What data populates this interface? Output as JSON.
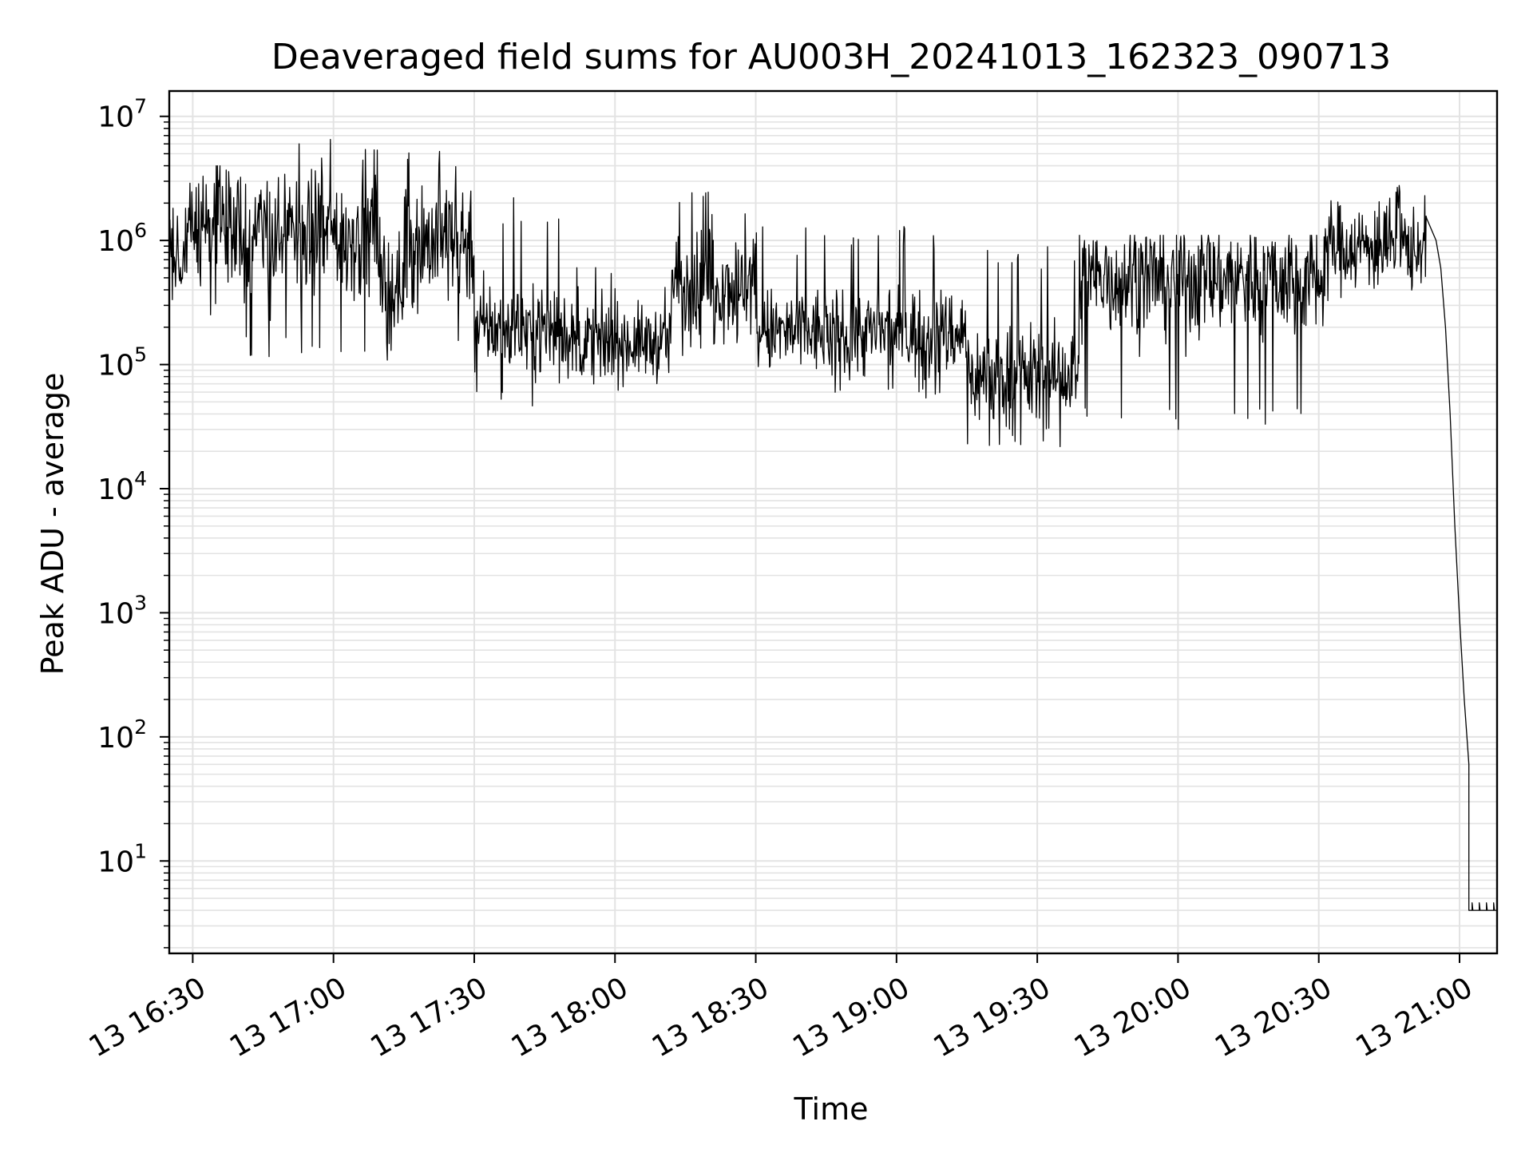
{
  "chart_data": {
    "type": "line",
    "title": "Deaveraged field sums for AU003H_20241013_162323_090713",
    "xlabel": "Time",
    "ylabel": "Peak ADU - average",
    "x_axis": {
      "kind": "datetime",
      "range": [
        "2024-10-13 16:25",
        "2024-10-13 21:08"
      ],
      "ticks": [
        {
          "t": "2024-10-13 16:30",
          "label": "13 16:30"
        },
        {
          "t": "2024-10-13 17:00",
          "label": "13 17:00"
        },
        {
          "t": "2024-10-13 17:30",
          "label": "13 17:30"
        },
        {
          "t": "2024-10-13 18:00",
          "label": "13 18:00"
        },
        {
          "t": "2024-10-13 18:30",
          "label": "13 18:30"
        },
        {
          "t": "2024-10-13 19:00",
          "label": "13 19:00"
        },
        {
          "t": "2024-10-13 19:30",
          "label": "13 19:30"
        },
        {
          "t": "2024-10-13 20:00",
          "label": "13 20:00"
        },
        {
          "t": "2024-10-13 20:30",
          "label": "13 20:30"
        },
        {
          "t": "2024-10-13 21:00",
          "label": "13 21:00"
        }
      ]
    },
    "y_axis": {
      "scale": "log",
      "range": [
        1.8,
        16000000
      ],
      "ticks": [
        {
          "value": 10,
          "base": "10",
          "exp": "1"
        },
        {
          "value": 100,
          "base": "10",
          "exp": "2"
        },
        {
          "value": 1000,
          "base": "10",
          "exp": "3"
        },
        {
          "value": 10000,
          "base": "10",
          "exp": "4"
        },
        {
          "value": 100000,
          "base": "10",
          "exp": "5"
        },
        {
          "value": 1000000,
          "base": "10",
          "exp": "6"
        },
        {
          "value": 10000000,
          "base": "10",
          "exp": "7"
        }
      ]
    },
    "grid": "major and minor, both axes",
    "line_color": "#000000",
    "series": [
      {
        "noise_envelope": [
          {
            "start": "2024-10-13 16:25",
            "end": "2024-10-13 16:31",
            "median": 900000,
            "spread_decades": 0.35,
            "max": 4200000,
            "min": 280000
          },
          {
            "start": "2024-10-13 16:31",
            "end": "2024-10-13 16:42",
            "median": 1200000,
            "spread_decades": 0.45,
            "max": 4000000,
            "min": 130000
          },
          {
            "start": "2024-10-13 16:42",
            "end": "2024-10-13 17:10",
            "median": 1100000,
            "spread_decades": 0.45,
            "max": 7800000,
            "min": 100000
          },
          {
            "start": "2024-10-13 17:10",
            "end": "2024-10-13 17:15",
            "median": 400000,
            "spread_decades": 0.35,
            "max": 1200000,
            "min": 90000
          },
          {
            "start": "2024-10-13 17:15",
            "end": "2024-10-13 17:30",
            "median": 1000000,
            "spread_decades": 0.45,
            "max": 6800000,
            "min": 120000
          },
          {
            "start": "2024-10-13 17:30",
            "end": "2024-10-13 17:50",
            "median": 200000,
            "spread_decades": 0.3,
            "max": 2400000,
            "min": 40000
          },
          {
            "start": "2024-10-13 17:50",
            "end": "2024-10-13 18:12",
            "median": 150000,
            "spread_decades": 0.25,
            "max": 700000,
            "min": 60000
          },
          {
            "start": "2024-10-13 18:12",
            "end": "2024-10-13 18:30",
            "median": 450000,
            "spread_decades": 0.35,
            "max": 2600000,
            "min": 110000
          },
          {
            "start": "2024-10-13 18:30",
            "end": "2024-10-13 19:15",
            "median": 180000,
            "spread_decades": 0.3,
            "max": 1300000,
            "min": 50000
          },
          {
            "start": "2024-10-13 19:15",
            "end": "2024-10-13 19:39",
            "median": 80000,
            "spread_decades": 0.35,
            "max": 1000000,
            "min": 20000
          },
          {
            "start": "2024-10-13 19:39",
            "end": "2024-10-13 20:31",
            "median": 500000,
            "spread_decades": 0.4,
            "max": 1100000,
            "min": 27000
          },
          {
            "start": "2024-10-13 20:31",
            "end": "2024-10-13 20:53",
            "median": 900000,
            "spread_decades": 0.3,
            "max": 2900000,
            "min": 300000
          }
        ],
        "points": [
          {
            "t": "2024-10-13 20:53",
            "v": 1500000
          },
          {
            "t": "2024-10-13 20:55",
            "v": 1000000
          },
          {
            "t": "2024-10-13 20:56",
            "v": 600000
          },
          {
            "t": "2024-10-13 20:57",
            "v": 200000
          },
          {
            "t": "2024-10-13 20:58",
            "v": 40000
          },
          {
            "t": "2024-10-13 20:59",
            "v": 5000
          },
          {
            "t": "2024-10-13 21:00",
            "v": 900
          },
          {
            "t": "2024-10-13 21:01",
            "v": 200
          },
          {
            "t": "2024-10-13 21:02",
            "v": 60
          },
          {
            "t": "2024-10-13 21:02",
            "v": 4
          },
          {
            "t": "2024-10-13 21:08",
            "v": 4
          }
        ]
      }
    ]
  }
}
